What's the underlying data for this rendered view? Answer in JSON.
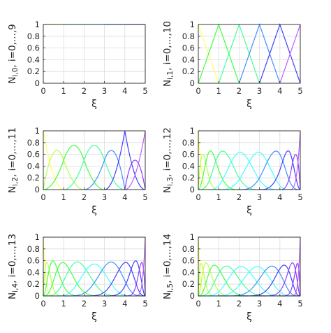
{
  "colors": [
    "#ffff66",
    "#b8ff45",
    "#40ff40",
    "#40ff9a",
    "#40ffff",
    "#3f8fff",
    "#3f3fff",
    "#8a3fff",
    "#c05cff"
  ],
  "chart_data": [
    {
      "type": "line",
      "title": "",
      "ylabel": "N",
      "ysub": "i,0",
      "yrest": ", i=0,...,9",
      "xlabel": "ξ",
      "degree": 0,
      "knots": [
        0,
        0,
        1,
        2,
        3,
        4,
        5,
        5
      ],
      "xlim": [
        0,
        5
      ],
      "ylim": [
        0,
        1
      ],
      "xticks": [
        "0",
        "1",
        "2",
        "3",
        "4",
        "5"
      ],
      "yticks": [
        "0",
        "0.2",
        "0.4",
        "0.6",
        "0.8",
        "1"
      ],
      "grid": true
    },
    {
      "type": "line",
      "title": "",
      "ylabel": "N",
      "ysub": "i,1",
      "yrest": ", i=0,...,10",
      "xlabel": "ξ",
      "degree": 1,
      "knots": [
        0,
        0,
        1,
        2,
        3,
        4,
        5,
        5
      ],
      "xlim": [
        0,
        5
      ],
      "ylim": [
        0,
        1
      ],
      "xticks": [
        "0",
        "1",
        "2",
        "3",
        "4",
        "5"
      ],
      "yticks": [
        "0",
        "0.2",
        "0.4",
        "0.6",
        "0.8",
        "1"
      ],
      "grid": true
    },
    {
      "type": "line",
      "title": "",
      "ylabel": "N",
      "ysub": "i,2",
      "yrest": ", i=0,...,11",
      "xlabel": "ξ",
      "degree": 2,
      "knots": [
        0,
        0,
        0,
        1,
        2,
        3,
        4,
        4,
        5,
        5,
        5
      ],
      "xlim": [
        0,
        5
      ],
      "ylim": [
        0,
        1
      ],
      "xticks": [
        "0",
        "1",
        "2",
        "3",
        "4",
        "5"
      ],
      "yticks": [
        "0",
        "0.2",
        "0.4",
        "0.6",
        "0.8",
        "1"
      ],
      "grid": true
    },
    {
      "type": "line",
      "title": "",
      "ylabel": "N",
      "ysub": "i,3",
      "yrest": ", i=0,...,12",
      "xlabel": "ξ",
      "degree": 3,
      "knots": [
        0,
        0,
        0,
        0,
        0.5,
        1,
        2,
        3,
        4,
        4.5,
        5,
        5,
        5,
        5
      ],
      "xlim": [
        0,
        5
      ],
      "ylim": [
        0,
        1
      ],
      "xticks": [
        "0",
        "1",
        "2",
        "3",
        "4",
        "5"
      ],
      "yticks": [
        "0",
        "0.2",
        "0.4",
        "0.6",
        "0.8",
        "1"
      ],
      "grid": true
    },
    {
      "type": "line",
      "title": "",
      "ylabel": "N",
      "ysub": "i,4",
      "yrest": ", i=0,...,13",
      "xlabel": "ξ",
      "degree": 4,
      "knots": [
        0,
        0,
        0,
        0,
        0,
        0.5,
        1,
        2,
        3,
        4,
        4.5,
        5,
        5,
        5,
        5,
        5
      ],
      "xlim": [
        0,
        5
      ],
      "ylim": [
        0,
        1
      ],
      "xticks": [
        "0",
        "1",
        "2",
        "3",
        "4",
        "5"
      ],
      "yticks": [
        "0",
        "0.2",
        "0.4",
        "0.6",
        "0.8",
        "1"
      ],
      "grid": true
    },
    {
      "type": "line",
      "title": "",
      "ylabel": "N",
      "ysub": "i,5",
      "yrest": ", i=0,...,14",
      "xlabel": "ξ",
      "degree": 5,
      "knots": [
        0,
        0,
        0,
        0,
        0,
        0,
        0.5,
        1,
        2,
        3,
        4,
        4.5,
        5,
        5,
        5,
        5,
        5,
        5
      ],
      "xlim": [
        0,
        5
      ],
      "ylim": [
        0,
        1
      ],
      "xticks": [
        "0",
        "1",
        "2",
        "3",
        "4",
        "5"
      ],
      "yticks": [
        "0",
        "0.2",
        "0.4",
        "0.6",
        "0.8",
        "1"
      ],
      "grid": true
    }
  ]
}
